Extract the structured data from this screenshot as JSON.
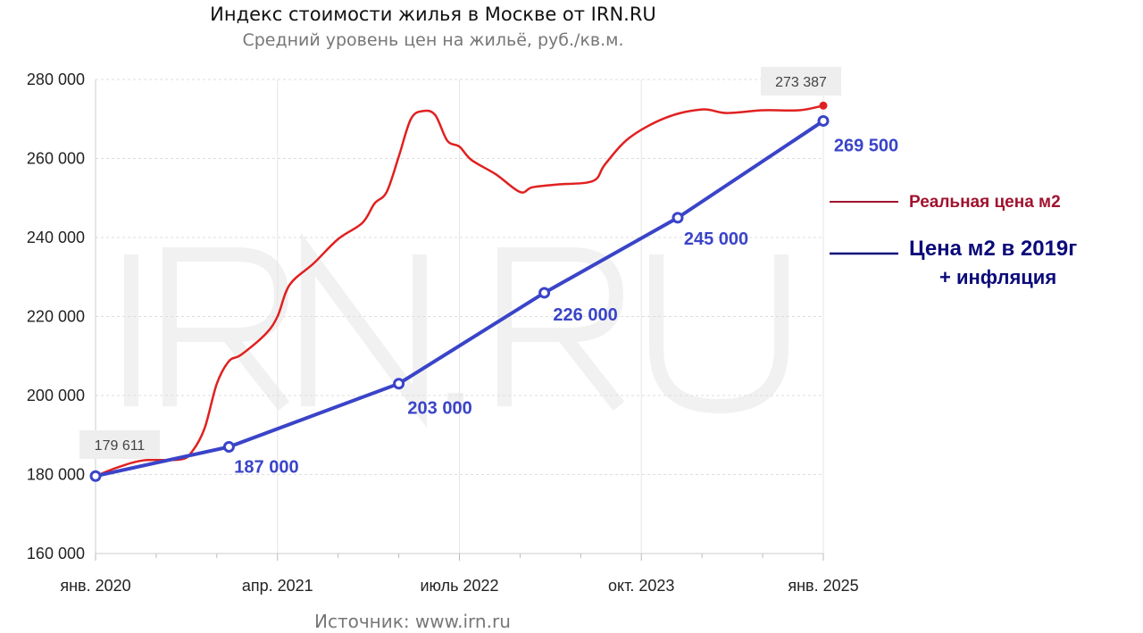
{
  "chart_data": {
    "type": "line",
    "title": "Индекс стоимости жилья в Москве от IRN.RU",
    "subtitle": "Средний уровень цен на жильё, руб./кв.м.",
    "source": "Источник: www.irn.ru",
    "watermark": "IRN.RU",
    "xlabel": "",
    "ylabel": "",
    "xlim": [
      "2020-01",
      "2025-01"
    ],
    "ylim": [
      160000,
      280000
    ],
    "yticks": [
      160000,
      180000,
      200000,
      220000,
      240000,
      260000,
      280000
    ],
    "ytick_labels": [
      "160 000",
      "180 000",
      "200 000",
      "220 000",
      "240 000",
      "260 000",
      "280 000"
    ],
    "xticks": [
      "2020-01",
      "2021-04",
      "2022-07",
      "2023-10",
      "2025-01"
    ],
    "xtick_labels": [
      "янв. 2020",
      "апр. 2021",
      "июль 2022",
      "окт. 2023",
      "янв. 2025"
    ],
    "grid": true,
    "legend_position": "right",
    "series": [
      {
        "name": "Реальная цена м2",
        "color": "#e02020",
        "legend_color": "#a0122e",
        "x": [
          "2020-01",
          "2020-03",
          "2020-05",
          "2020-08",
          "2020-09",
          "2020-10",
          "2020-11",
          "2020-12",
          "2021-01",
          "2021-03",
          "2021-04",
          "2021-05",
          "2021-07",
          "2021-09",
          "2021-11",
          "2021-12",
          "2022-01",
          "2022-02",
          "2022-03",
          "2022-04",
          "2022-05",
          "2022-06",
          "2022-07",
          "2022-08",
          "2022-10",
          "2022-12",
          "2023-01",
          "2023-03",
          "2023-06",
          "2023-07",
          "2023-09",
          "2023-12",
          "2024-03",
          "2024-05",
          "2024-08",
          "2024-11",
          "2025-01"
        ],
        "values": [
          179611,
          182000,
          183600,
          183800,
          186000,
          191800,
          203000,
          208700,
          210300,
          215500,
          220000,
          228000,
          233500,
          239600,
          243700,
          248600,
          251500,
          260500,
          270000,
          272000,
          271000,
          264500,
          263000,
          259600,
          256000,
          251500,
          252700,
          253400,
          254300,
          258500,
          265200,
          270300,
          272400,
          271500,
          272200,
          272200,
          273387
        ],
        "end_labels": {
          "start": "179 611",
          "end": "273 387"
        }
      },
      {
        "name": "Цена м2 в 2019г + инфляция",
        "color": "#3a44c8",
        "legend_color": "#0a0a7a",
        "x": [
          "2020-01",
          "2020-12",
          "2022-02",
          "2023-02",
          "2024-01",
          "2025-01"
        ],
        "values": [
          179611,
          187000,
          203000,
          226000,
          245000,
          269500
        ],
        "data_labels": [
          "",
          "187 000",
          "203 000",
          "226 000",
          "245 000",
          "269 500"
        ]
      }
    ],
    "legend": {
      "red_label": "Реальная цена м2",
      "blue_label_line1": "Цена м2 в 2019г",
      "blue_label_line2": "+ инфляция"
    }
  }
}
